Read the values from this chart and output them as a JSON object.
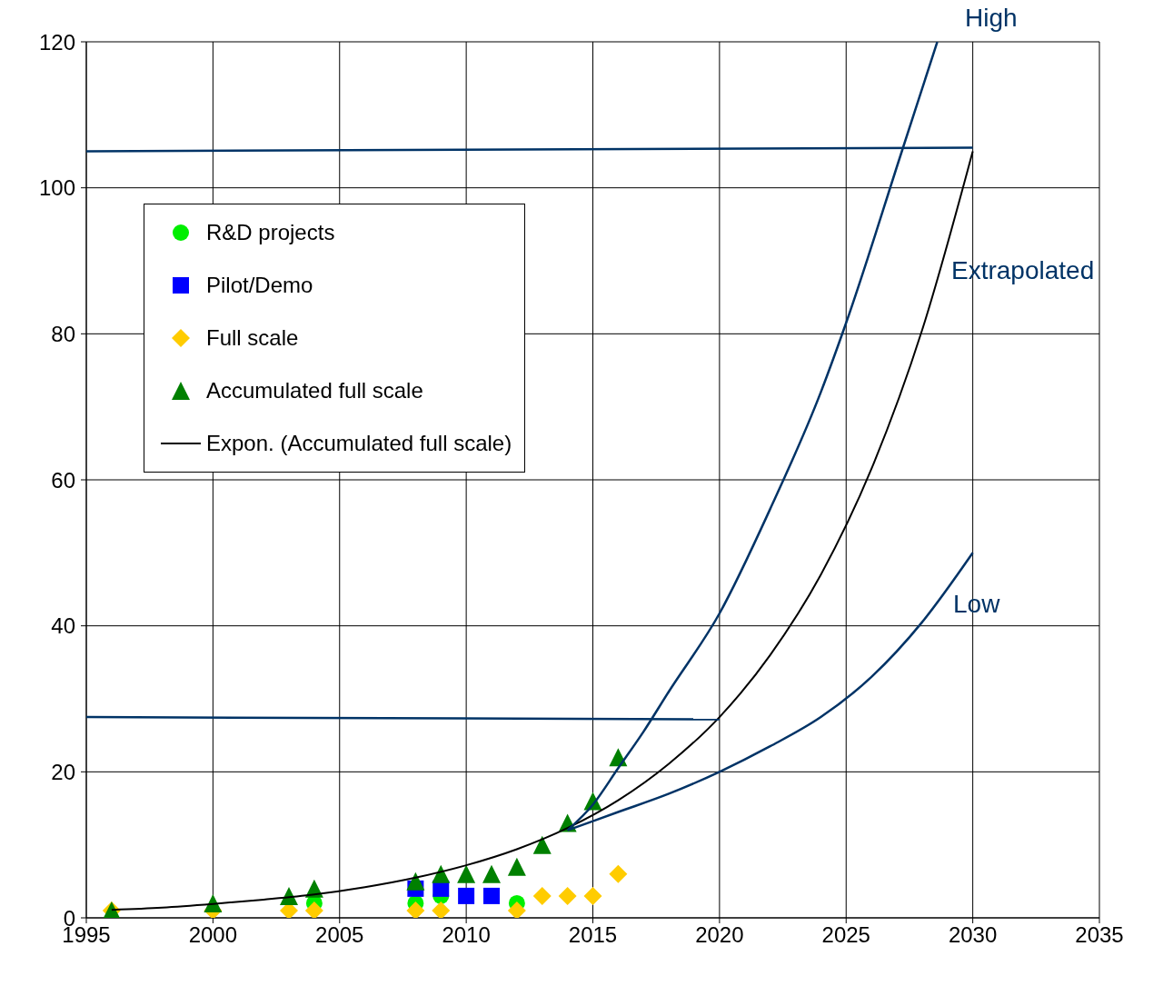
{
  "chart_data": {
    "type": "scatter",
    "xlim": [
      1995,
      2035
    ],
    "xticks": [
      1995,
      2000,
      2005,
      2010,
      2015,
      2020,
      2025,
      2030,
      2035
    ],
    "ylim": [
      0,
      120
    ],
    "yticks": [
      0,
      20,
      40,
      60,
      80,
      100,
      120
    ],
    "grid": true,
    "legend": "top left",
    "series": [
      {
        "name": "R&D projects",
        "marker": "circle",
        "color": "#00ee00",
        "x": [
          2004,
          2008,
          2009,
          2012
        ],
        "values": [
          2,
          2,
          3,
          2
        ]
      },
      {
        "name": "Pilot/Demo",
        "marker": "square",
        "color": "#0000ff",
        "x": [
          2008,
          2009,
          2010,
          2011
        ],
        "values": [
          4,
          4,
          3,
          3
        ]
      },
      {
        "name": "Full scale",
        "marker": "diamond",
        "color": "#ffcc00",
        "x": [
          1996,
          2000,
          2003,
          2004,
          2008,
          2009,
          2012,
          2013,
          2014,
          2015,
          2016
        ],
        "values": [
          1,
          1,
          1,
          1,
          1,
          1,
          1,
          3,
          3,
          3,
          6
        ]
      },
      {
        "name": "Accumulated full scale",
        "marker": "triangle",
        "color": "#008000",
        "x": [
          1996,
          2000,
          2003,
          2004,
          2008,
          2009,
          2010,
          2011,
          2012,
          2013,
          2014,
          2015,
          2016
        ],
        "values": [
          1,
          2,
          3,
          4,
          5,
          6,
          6,
          6,
          7,
          10,
          13,
          16,
          22
        ]
      },
      {
        "name": "Expon. (Accumulated full scale)",
        "type": "line",
        "marker": "none",
        "color": "#000000",
        "x": [
          1996,
          1998,
          2000,
          2002,
          2004,
          2006,
          2008,
          2010,
          2012,
          2014,
          2016,
          2018,
          2020,
          2022,
          2024,
          2026,
          2028,
          2030
        ],
        "values": [
          1.1,
          1.4,
          1.9,
          2.5,
          3.2,
          4.2,
          5.5,
          7.2,
          9.4,
          12.3,
          16.1,
          21.1,
          27.5,
          36,
          47,
          61.5,
          80.5,
          105
        ]
      },
      {
        "type": "line",
        "marker": "none",
        "color": "#003366",
        "x": [
          2014,
          2015,
          2016,
          2017,
          2018,
          2020,
          2022,
          2024,
          2025,
          2027.2,
          2028.6
        ],
        "values": [
          12,
          15.5,
          20.5,
          25.5,
          31,
          41.7,
          56,
          72,
          81.5,
          105,
          120
        ]
      },
      {
        "type": "line",
        "marker": "none",
        "color": "#003366",
        "x": [
          2014,
          2016,
          2018,
          2020,
          2022,
          2024,
          2026,
          2028,
          2030
        ],
        "values": [
          12,
          14.5,
          17,
          20,
          23.5,
          27.5,
          33,
          40.5,
          50
        ]
      },
      {
        "type": "line",
        "marker": "none",
        "color": "#003366",
        "x": [
          1995,
          2030
        ],
        "values": [
          105,
          105.5
        ]
      },
      {
        "type": "line",
        "marker": "none",
        "color": "#003366",
        "x": [
          1995,
          2020
        ],
        "values": [
          27.5,
          27.2
        ]
      }
    ],
    "annotations": [
      "High",
      "Extrapolated",
      "Low"
    ]
  }
}
